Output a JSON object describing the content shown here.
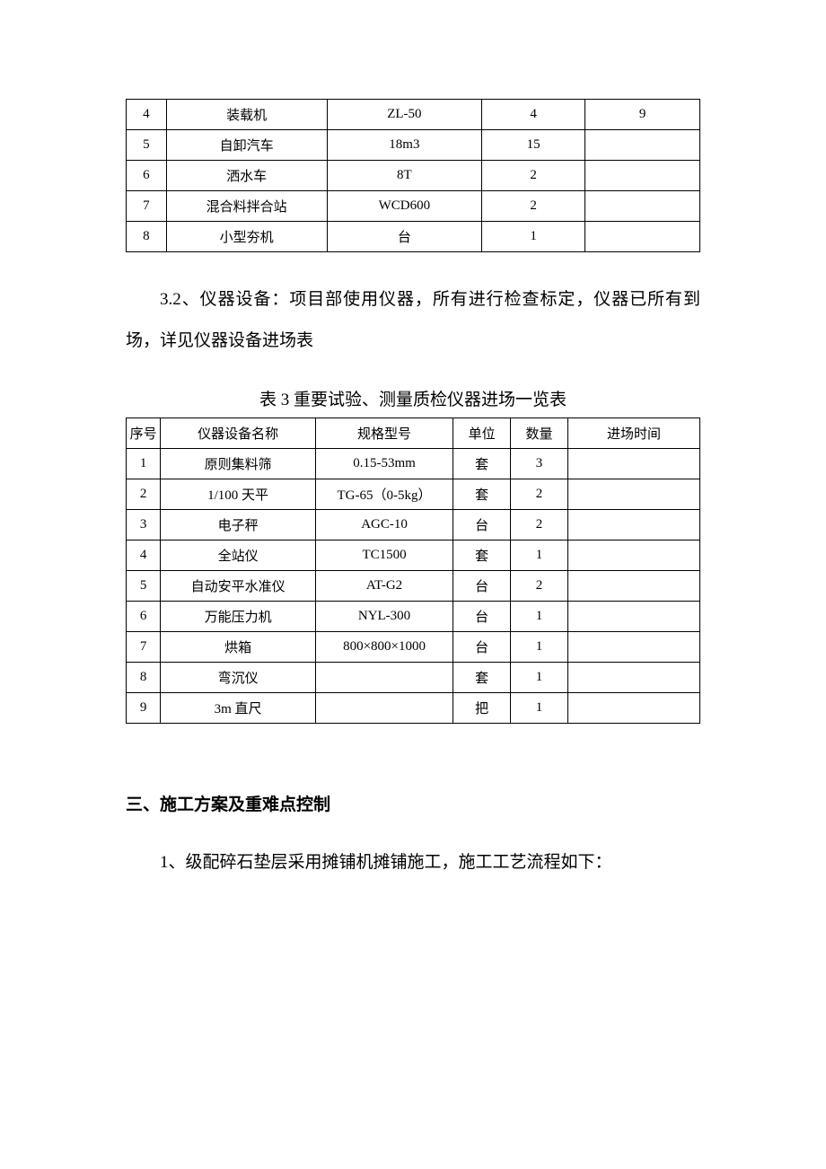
{
  "table1": {
    "rows": [
      {
        "no": "4",
        "name": "装载机",
        "spec": "ZL-50",
        "qty": "4",
        "extra": "9"
      },
      {
        "no": "5",
        "name": "自卸汽车",
        "spec": "18m3",
        "qty": "15",
        "extra": ""
      },
      {
        "no": "6",
        "name": "洒水车",
        "spec": "8T",
        "qty": "2",
        "extra": ""
      },
      {
        "no": "7",
        "name": "混合料拌合站",
        "spec": "WCD600",
        "qty": "2",
        "extra": ""
      },
      {
        "no": "8",
        "name": "小型夯机",
        "spec": "台",
        "qty": "1",
        "extra": ""
      }
    ]
  },
  "para1": "3.2、仪器设备：项目部使用仪器，所有进行检查标定，仪器已所有到场，详见仪器设备进场表",
  "caption2": "表 3  重要试验、测量质检仪器进场一览表",
  "table2": {
    "headers": {
      "c1": "序号",
      "c2": "仪器设备名称",
      "c3": "规格型号",
      "c4": "单位",
      "c5": "数量",
      "c6": "进场时间"
    },
    "rows": [
      {
        "no": "1",
        "name": "原则集料筛",
        "spec": "0.15-53mm",
        "unit": "套",
        "qty": "3",
        "time": ""
      },
      {
        "no": "2",
        "name": "1/100 天平",
        "spec": "TG-65（0-5kg）",
        "unit": "套",
        "qty": "2",
        "time": ""
      },
      {
        "no": "3",
        "name": "电子秤",
        "spec": "AGC-10",
        "unit": "台",
        "qty": "2",
        "time": ""
      },
      {
        "no": "4",
        "name": "全站仪",
        "spec": "TC1500",
        "unit": "套",
        "qty": "1",
        "time": ""
      },
      {
        "no": "5",
        "name": "自动安平水准仪",
        "spec": "AT-G2",
        "unit": "台",
        "qty": "2",
        "time": ""
      },
      {
        "no": "6",
        "name": "万能压力机",
        "spec": "NYL-300",
        "unit": "台",
        "qty": "1",
        "time": ""
      },
      {
        "no": "7",
        "name": "烘箱",
        "spec": "800×800×1000",
        "unit": "台",
        "qty": "1",
        "time": ""
      },
      {
        "no": "8",
        "name": "弯沉仪",
        "spec": "",
        "unit": "套",
        "qty": "1",
        "time": ""
      },
      {
        "no": "9",
        "name": "3m 直尺",
        "spec": "",
        "unit": "把",
        "qty": "1",
        "time": ""
      }
    ]
  },
  "heading3": "三、施工方案及重难点控制",
  "para3": "1、级配碎石垫层采用摊铺机摊铺施工，施工工艺流程如下："
}
